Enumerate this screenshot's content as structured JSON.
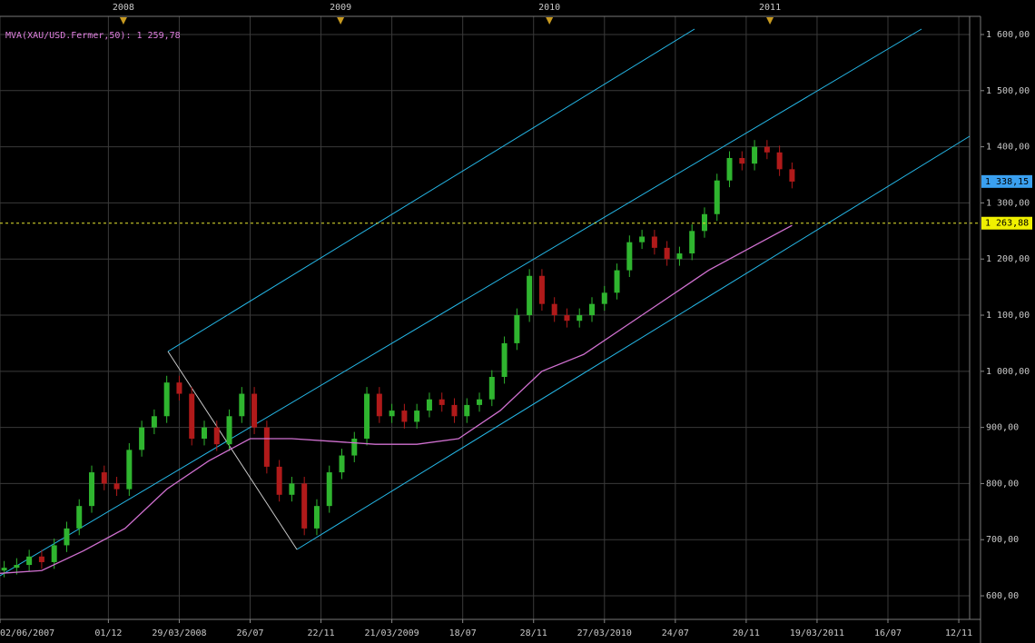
{
  "chart_data": {
    "type": "candlestick",
    "indicator_label": "MVA(XAU/USD.Fermer,50): 1 259,78",
    "up_color": "#2fb52f",
    "down_color": "#b01a1a",
    "ma_color": "#d070d0",
    "grid": true,
    "xlim": [
      0,
      232.6
    ],
    "ylim": [
      558,
      1661.5
    ],
    "yticks": [
      {
        "value": 600,
        "label": "600,00"
      },
      {
        "value": 700,
        "label": "700,00"
      },
      {
        "value": 800,
        "label": "800,00"
      },
      {
        "value": 900,
        "label": "900,00"
      },
      {
        "value": 1000,
        "label": "1 000,00"
      },
      {
        "value": 1100,
        "label": "1 100,00"
      },
      {
        "value": 1200,
        "label": "1 200,00"
      },
      {
        "value": 1300,
        "label": "1 300,00"
      },
      {
        "value": 1400,
        "label": "1 400,00"
      },
      {
        "value": 1500,
        "label": "1 500,00"
      },
      {
        "value": 1600,
        "label": "1 600,00"
      }
    ],
    "xticks": [
      {
        "value": 0,
        "label": "02/06/2007"
      },
      {
        "value": 26,
        "label": "01/12"
      },
      {
        "value": 43,
        "label": "29/03/2008"
      },
      {
        "value": 60,
        "label": "26/07"
      },
      {
        "value": 77,
        "label": "22/11"
      },
      {
        "value": 94,
        "label": "21/03/2009"
      },
      {
        "value": 111,
        "label": "18/07"
      },
      {
        "value": 128,
        "label": "28/11"
      },
      {
        "value": 145,
        "label": "27/03/2010"
      },
      {
        "value": 162,
        "label": "24/07"
      },
      {
        "value": 179,
        "label": "20/11"
      },
      {
        "value": 196,
        "label": "19/03/2011"
      },
      {
        "value": 213,
        "label": "16/07"
      },
      {
        "value": 230,
        "label": "12/11"
      }
    ],
    "year_marks": [
      {
        "value": 29.6,
        "label": "2008"
      },
      {
        "value": 81.7,
        "label": "2009"
      },
      {
        "value": 131.8,
        "label": "2010"
      },
      {
        "value": 184.7,
        "label": "2011"
      }
    ],
    "last_price": {
      "value": 1338.15,
      "label": "1 338,15"
    },
    "level": {
      "value": 1263.88,
      "label": "1 263,88"
    },
    "x": [
      1,
      4,
      7,
      10,
      13,
      16,
      19,
      22,
      25,
      28,
      31,
      34,
      37,
      40,
      43,
      46,
      49,
      52,
      55,
      58,
      61,
      64,
      67,
      70,
      73,
      76,
      79,
      82,
      85,
      88,
      91,
      94,
      97,
      100,
      103,
      106,
      109,
      112,
      115,
      118,
      121,
      124,
      127,
      130,
      133,
      136,
      139,
      142,
      145,
      148,
      151,
      154,
      157,
      160,
      163,
      166,
      169,
      172,
      175,
      178,
      181,
      184,
      187,
      190
    ],
    "open": [
      645,
      650,
      655,
      670,
      660,
      690,
      720,
      760,
      820,
      800,
      790,
      860,
      900,
      920,
      980,
      960,
      880,
      900,
      870,
      920,
      960,
      900,
      830,
      780,
      800,
      720,
      760,
      820,
      850,
      880,
      960,
      920,
      930,
      910,
      930,
      950,
      940,
      920,
      940,
      950,
      990,
      1050,
      1100,
      1170,
      1120,
      1100,
      1090,
      1100,
      1120,
      1140,
      1180,
      1230,
      1240,
      1220,
      1200,
      1210,
      1250,
      1280,
      1340,
      1380,
      1370,
      1400,
      1390,
      1360
    ],
    "high": [
      662,
      667,
      682,
      682,
      702,
      732,
      772,
      832,
      832,
      812,
      872,
      912,
      932,
      992,
      992,
      972,
      912,
      912,
      932,
      972,
      972,
      912,
      842,
      812,
      812,
      772,
      832,
      862,
      892,
      972,
      972,
      942,
      942,
      942,
      962,
      962,
      952,
      952,
      962,
      1002,
      1062,
      1112,
      1182,
      1182,
      1132,
      1112,
      1112,
      1132,
      1152,
      1192,
      1242,
      1252,
      1252,
      1232,
      1222,
      1262,
      1292,
      1352,
      1392,
      1392,
      1412,
      1412,
      1402,
      1372
    ],
    "low": [
      633,
      638,
      643,
      648,
      648,
      678,
      708,
      748,
      788,
      778,
      778,
      848,
      888,
      908,
      948,
      868,
      868,
      858,
      858,
      908,
      888,
      818,
      768,
      768,
      708,
      708,
      748,
      808,
      838,
      868,
      908,
      908,
      898,
      898,
      918,
      928,
      908,
      908,
      928,
      938,
      978,
      1038,
      1088,
      1108,
      1088,
      1078,
      1078,
      1088,
      1108,
      1128,
      1168,
      1218,
      1208,
      1188,
      1188,
      1198,
      1238,
      1268,
      1328,
      1358,
      1358,
      1378,
      1348,
      1326
    ],
    "close": [
      650,
      655,
      670,
      660,
      690,
      720,
      760,
      820,
      800,
      790,
      860,
      900,
      920,
      980,
      960,
      880,
      900,
      870,
      920,
      960,
      900,
      830,
      780,
      800,
      720,
      760,
      820,
      850,
      880,
      960,
      920,
      930,
      910,
      930,
      950,
      940,
      920,
      940,
      950,
      990,
      1050,
      1100,
      1170,
      1120,
      1100,
      1090,
      1100,
      1120,
      1140,
      1180,
      1230,
      1240,
      1220,
      1200,
      1210,
      1250,
      1280,
      1340,
      1380,
      1370,
      1400,
      1390,
      1360,
      1338
    ],
    "ma_x": [
      0,
      10,
      20,
      30,
      40,
      50,
      60,
      70,
      80,
      90,
      100,
      110,
      120,
      130,
      140,
      150,
      160,
      170,
      180,
      190
    ],
    "ma_values": [
      640,
      645,
      680,
      720,
      790,
      840,
      880,
      880,
      875,
      870,
      870,
      880,
      930,
      1000,
      1030,
      1080,
      1130,
      1180,
      1220,
      1260
    ]
  }
}
